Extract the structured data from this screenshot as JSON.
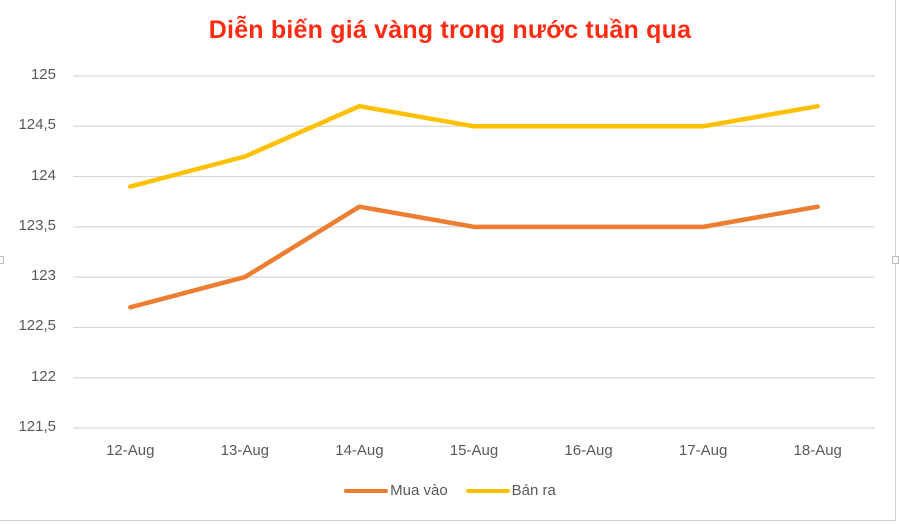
{
  "chart_data": {
    "type": "line",
    "title": "Diễn biến giá vàng trong nước tuần qua",
    "xlabel": "",
    "ylabel": "",
    "categories": [
      "12-Aug",
      "13-Aug",
      "14-Aug",
      "15-Aug",
      "16-Aug",
      "17-Aug",
      "18-Aug"
    ],
    "series": [
      {
        "name": "Mua vào",
        "color": "#ed7d31",
        "values": [
          122.7,
          123.0,
          123.7,
          123.5,
          123.5,
          123.5,
          123.7
        ]
      },
      {
        "name": "Bán ra",
        "color": "#ffc000",
        "values": [
          123.9,
          124.2,
          124.7,
          124.5,
          124.5,
          124.5,
          124.7
        ]
      }
    ],
    "ylim": [
      121.5,
      125
    ],
    "yticks": [
      "125",
      "124,5",
      "124",
      "123,5",
      "123",
      "122,5",
      "122",
      "121,5"
    ],
    "ytick_values": [
      125,
      124.5,
      124,
      123.5,
      123,
      122.5,
      122,
      121.5
    ],
    "grid": true,
    "legend_position": "bottom"
  },
  "colors": {
    "title": "#ff2a12",
    "gridline": "#d9d9d9",
    "tick_text": "#595959"
  }
}
